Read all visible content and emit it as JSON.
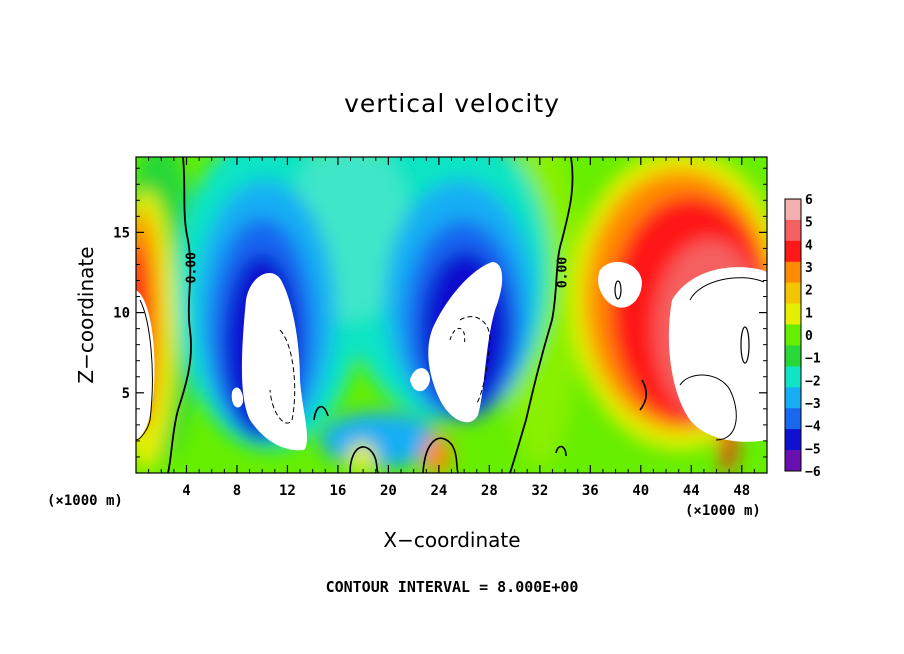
{
  "chart_data": {
    "type": "heatmap",
    "title": "vertical velocity",
    "xlabel": "X−coordinate",
    "ylabel": "Z−coordinate",
    "x_multiplier": "(×1000 m)",
    "z_multiplier": "(×1000 m)",
    "xlim": [
      0,
      50
    ],
    "ylim": [
      0,
      19.7
    ],
    "x_ticks": [
      4,
      8,
      12,
      16,
      20,
      24,
      28,
      32,
      36,
      40,
      44,
      48
    ],
    "x_tick_labels": [
      "4",
      "8",
      "12",
      "16",
      "20",
      "24",
      "28",
      "32",
      "36",
      "40",
      "44",
      "48"
    ],
    "y_ticks": [
      5,
      10,
      15
    ],
    "y_tick_labels": [
      "5",
      "10",
      "15"
    ],
    "colorbar": {
      "levels": [
        6,
        5,
        4,
        3,
        2,
        1,
        0,
        -1,
        -2,
        -3,
        -4,
        -5,
        -6
      ],
      "labels": [
        "6",
        "5",
        "4",
        "3",
        "2",
        "1",
        "0",
        "−1",
        "−2",
        "−3",
        "−4",
        "−5",
        "−6"
      ],
      "colors": [
        "#f4b0b0",
        "#f46060",
        "#ff1818",
        "#ff8c00",
        "#f2c500",
        "#e4ef00",
        "#66ee00",
        "#28d838",
        "#10e4c4",
        "#18aef4",
        "#1868f0",
        "#1010d0",
        "#6a10b0"
      ]
    },
    "contour_labels": [
      {
        "text": "0.00",
        "x": 4.3,
        "z": 12.8
      },
      {
        "text": "0.00",
        "x": 33.7,
        "z": 12.5
      }
    ],
    "contour_interval": "CONTOUR INTERVAL = 8.000E+00"
  }
}
